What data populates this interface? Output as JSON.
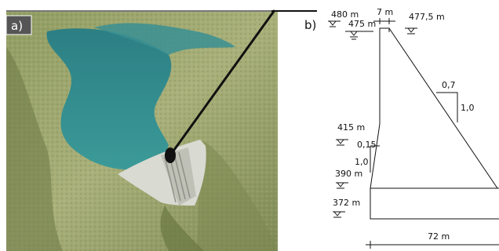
{
  "panels": {
    "a": {
      "label": "a)"
    },
    "b": {
      "label": "b)"
    }
  },
  "dimensions": {
    "elev_480": "480 m",
    "elev_475": "475 m",
    "crest_width": "7 m",
    "elev_477_5": "477,5 m",
    "slope_h": "0,7",
    "slope_v": "1,0",
    "elev_415": "415 m",
    "batter_h": "0,15",
    "batter_v": "1,0",
    "elev_390": "390 m",
    "elev_372": "372 m",
    "base_width": "72 m"
  },
  "colors": {
    "water": "#2f8a8f",
    "terrain": "#9aa46a",
    "dam": "#d6d6cf"
  }
}
